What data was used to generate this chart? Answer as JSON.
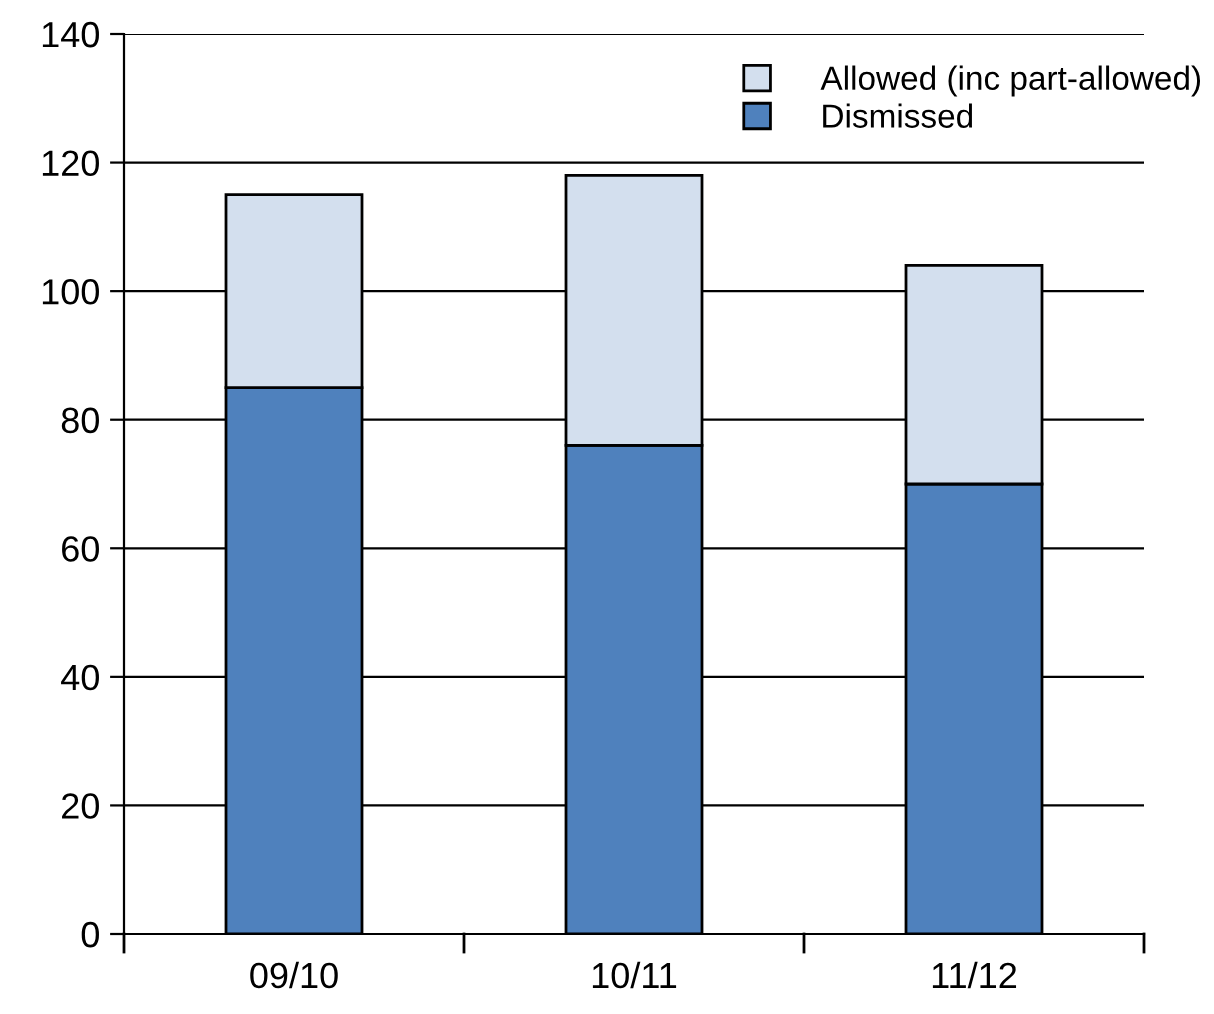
{
  "chart_data": {
    "type": "bar",
    "stacked": true,
    "categories": [
      "09/10",
      "10/11",
      "11/12"
    ],
    "series": [
      {
        "name": "Dismissed",
        "color": "#4f81bd",
        "values": [
          85,
          76,
          70
        ]
      },
      {
        "name": "Allowed (inc part-allowed)",
        "color": "#d3dfee",
        "values": [
          30,
          42,
          34
        ]
      }
    ],
    "ylim": [
      0,
      140
    ],
    "yticks": [
      0,
      20,
      40,
      60,
      80,
      100,
      120,
      140
    ],
    "grid": "y",
    "legend": "top right"
  }
}
